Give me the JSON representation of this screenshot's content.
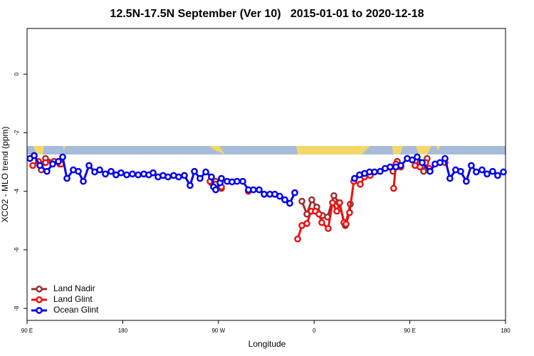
{
  "chart_data": {
    "type": "line",
    "title": "12.5N-17.5N September (Ver 10)   2015-01-01 to 2020-12-18",
    "xlabel": "Longitude",
    "ylabel": "XCO2 - MLO trend (ppm)",
    "xlim": [
      90,
      540
    ],
    "ylim": [
      -8.41,
      1.56
    ],
    "xticks": [
      {
        "value": 90,
        "label": "90 E"
      },
      {
        "value": 180,
        "label": "180"
      },
      {
        "value": 270,
        "label": "90 W"
      },
      {
        "value": 360,
        "label": "0"
      },
      {
        "value": 450,
        "label": "90 E"
      },
      {
        "value": 540,
        "label": "180"
      }
    ],
    "yticks": [
      0,
      -2,
      -4,
      -6,
      -8
    ],
    "legend": "bottom-left",
    "series": [
      {
        "name": "Land Nadir",
        "color": "#9b3030",
        "x": [
          103.4,
          107.4,
          120.8,
          null,
          263.4,
          267.4,
          272.8,
          null,
          348.5,
          353.2,
          357.8,
          362.5,
          367.9,
          372.6,
          378.6,
          383.3,
          389.3,
          394,
          null,
          434.2,
          438.2,
          null,
          459.6,
          463,
          466.3
        ],
        "values": [
          -3.27,
          -2.88,
          -3.07,
          null,
          -3.71,
          -3.66,
          -3.9,
          null,
          -4.34,
          -4.78,
          -4.29,
          -4.54,
          -4.83,
          -4.88,
          -4.15,
          -4.39,
          -5.17,
          -4.44,
          null,
          -3.32,
          -2.98,
          null,
          -3.02,
          -3.32,
          -2.88
        ]
      },
      {
        "name": "Land Glint",
        "color": "#ee1111",
        "x": [
          95.4,
          100.7,
          107.4,
          115.4,
          122.1,
          null,
          262.1,
          267.4,
          272.8,
          null,
          298.2,
          null,
          344.5,
          348.5,
          353.2,
          357.2,
          361.2,
          364.5,
          367.2,
          373.2,
          377.3,
          381.3,
          384,
          388,
          390,
          393.3,
          397.3,
          403.4,
          407.4,
          412.7,
          null,
          434.8,
          436.9,
          441.5,
          null,
          454.9,
          459.6,
          465,
          468.3,
          null,
          483.1
        ],
        "values": [
          -3.12,
          -2.98,
          -3.02,
          -2.98,
          -3.07,
          null,
          -3.66,
          -3.76,
          -3.85,
          null,
          -4.0,
          null,
          -5.63,
          -5.17,
          -5.1,
          -4.68,
          -4.68,
          -4.78,
          -5.07,
          -5.27,
          -4.39,
          -4.68,
          -4.39,
          -5.07,
          -5.12,
          -4.73,
          -3.66,
          -3.76,
          -3.51,
          -3.46,
          null,
          -3.9,
          -3.07,
          -3.17,
          null,
          -3.12,
          -3.17,
          -3.02,
          -3.22,
          null,
          -3.02
        ]
      },
      {
        "name": "Ocean Glint",
        "color": "#0000ee",
        "x": [
          92.7,
          96.7,
          102.1,
          108.7,
          114.1,
          119.5,
          123.5,
          127.5,
          133.5,
          138.2,
          142.9,
          148.3,
          153.6,
          158.3,
          163.7,
          169,
          173.7,
          178.4,
          183.7,
          189.1,
          194.5,
          199.8,
          204.5,
          208.5,
          213.2,
          217.9,
          222.6,
          227.9,
          232.6,
          238,
          243.3,
          247.4,
          252.7,
          258.1,
          263.4,
          265.4,
          267.4,
          271.5,
          272.8,
          278.2,
          282.8,
          287.5,
          292.9,
          298.2,
          302.9,
          308.3,
          313,
          318.3,
          323,
          327.7,
          332.4,
          337.1,
          341.8,
          null,
          398,
          402.7,
          407.4,
          412.1,
          416.8,
          422.1,
          426.8,
          431.5,
          436.9,
          441.5,
          447.6,
          452.3,
          456.9,
          461.6,
          469,
          473.7,
          478.4,
          483.1,
          487.7,
          493.1,
          497.8,
          503.1,
          507.8,
          512.5,
          517.9,
          522.6,
          527.9,
          532.6,
          538
        ],
        "values": [
          -2.88,
          -2.78,
          -3.12,
          -3.32,
          -3.07,
          -2.98,
          -2.83,
          -3.56,
          -3.27,
          -3.32,
          -3.66,
          -3.12,
          -3.34,
          -3.27,
          -3.41,
          -3.32,
          -3.44,
          -3.37,
          -3.44,
          -3.41,
          -3.44,
          -3.41,
          -3.44,
          -3.37,
          -3.51,
          -3.46,
          -3.51,
          -3.46,
          -3.51,
          -3.46,
          -3.8,
          -3.32,
          -3.56,
          -3.34,
          -3.51,
          -3.85,
          -3.95,
          -3.71,
          -3.56,
          -3.66,
          -3.68,
          -3.66,
          -3.66,
          -3.95,
          -3.95,
          -3.95,
          -4.1,
          -4.1,
          -4.1,
          -4.17,
          -4.29,
          -4.41,
          -4.05,
          null,
          -3.56,
          -3.44,
          -3.39,
          -3.34,
          -3.34,
          -3.32,
          -3.22,
          -3.17,
          -3.17,
          -3.12,
          -2.88,
          -2.93,
          -2.83,
          -3.02,
          -3.32,
          -3.07,
          -3.02,
          -2.88,
          -3.56,
          -3.27,
          -3.32,
          -3.66,
          -3.12,
          -3.34,
          -3.27,
          -3.41,
          -3.32,
          -3.46,
          -3.34
        ]
      }
    ]
  }
}
